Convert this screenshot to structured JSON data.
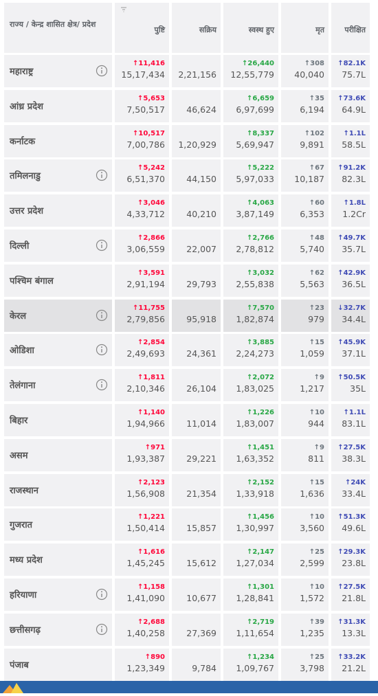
{
  "table": {
    "header": [
      "राज्य / केन्द्र शासित क्षेत्र/ प्रदेश",
      "पुष्टि",
      "सक्रिय",
      "स्वस्थ हुए",
      "मृत",
      "परीक्षित"
    ],
    "highlighted_row": 7,
    "rows": [
      {
        "state": "महाराष्ट्र",
        "info": true,
        "values": [
          "↑11,416",
          "15,17,434",
          "2,21,156",
          "↑26,440",
          "12,55,779",
          "↑308",
          "40,040",
          "↑82.1K",
          "75.7L"
        ]
      },
      {
        "state": "आंध्र प्रदेश",
        "info": false,
        "values": [
          "↑5,653",
          "7,50,517",
          "46,624",
          "↑6,659",
          "6,97,699",
          "↑35",
          "6,194",
          "↑73.6K",
          "64.9L"
        ]
      },
      {
        "state": "कर्नाटक",
        "info": false,
        "values": [
          "↑10,517",
          "7,00,786",
          "1,20,929",
          "↑8,337",
          "5,69,947",
          "↑102",
          "9,891",
          "↑1.1L",
          "58.5L"
        ]
      },
      {
        "state": "तमिलनाडु",
        "info": true,
        "values": [
          "↑5,242",
          "6,51,370",
          "44,150",
          "↑5,222",
          "5,97,033",
          "↑67",
          "10,187",
          "↑91.2K",
          "82.3L"
        ]
      },
      {
        "state": "उत्तर प्रदेश",
        "info": false,
        "values": [
          "↑3,046",
          "4,33,712",
          "40,210",
          "↑4,063",
          "3,87,149",
          "↑60",
          "6,353",
          "↑1.8L",
          "1.2Cr"
        ]
      },
      {
        "state": "दिल्ली",
        "info": true,
        "values": [
          "↑2,866",
          "3,06,559",
          "22,007",
          "↑2,766",
          "2,78,812",
          "↑48",
          "5,740",
          "↑49.7K",
          "35.7L"
        ]
      },
      {
        "state": "पश्चिम बंगाल",
        "info": false,
        "values": [
          "↑3,591",
          "2,91,194",
          "29,793",
          "↑3,032",
          "2,55,838",
          "↑62",
          "5,563",
          "↑42.9K",
          "36.5L"
        ]
      },
      {
        "state": "केरल",
        "info": true,
        "values": [
          "↑11,755",
          "2,79,856",
          "95,918",
          "↑7,570",
          "1,82,874",
          "↑23",
          "979",
          "↓32.7K",
          "34.4L"
        ]
      },
      {
        "state": "ओडिशा",
        "info": true,
        "values": [
          "↑2,854",
          "2,49,693",
          "24,361",
          "↑3,885",
          "2,24,273",
          "↑15",
          "1,059",
          "↑45.9K",
          "37.1L"
        ]
      },
      {
        "state": "तेलंगाना",
        "info": true,
        "values": [
          "↑1,811",
          "2,10,346",
          "26,104",
          "↑2,072",
          "1,83,025",
          "↑9",
          "1,217",
          "↑50.5K",
          "35L"
        ]
      },
      {
        "state": "बिहार",
        "info": false,
        "values": [
          "↑1,140",
          "1,94,966",
          "11,014",
          "↑1,226",
          "1,83,007",
          "↑10",
          "944",
          "↑1.1L",
          "83.1L"
        ]
      },
      {
        "state": "असम",
        "info": false,
        "values": [
          "↑971",
          "1,93,387",
          "29,221",
          "↑1,451",
          "1,63,352",
          "↑9",
          "811",
          "↑27.5K",
          "38.3L"
        ]
      },
      {
        "state": "राजस्थान",
        "info": false,
        "values": [
          "↑2,123",
          "1,56,908",
          "21,354",
          "↑2,152",
          "1,33,918",
          "↑15",
          "1,636",
          "↑24K",
          "33.4L"
        ]
      },
      {
        "state": "गुजरात",
        "info": false,
        "values": [
          "↑1,221",
          "1,50,414",
          "15,857",
          "↑1,456",
          "1,30,997",
          "↑10",
          "3,560",
          "↑51.3K",
          "49.6L"
        ]
      },
      {
        "state": "मध्य प्रदेश",
        "info": false,
        "values": [
          "↑1,616",
          "1,45,245",
          "15,612",
          "↑2,147",
          "1,27,034",
          "↑25",
          "2,599",
          "↑29.3K",
          "23.8L"
        ]
      },
      {
        "state": "हरियाणा",
        "info": true,
        "values": [
          "↑1,158",
          "1,41,090",
          "10,677",
          "↑1,301",
          "1,28,841",
          "↑10",
          "1,572",
          "↑27.5K",
          "21.8L"
        ]
      },
      {
        "state": "छत्तीसगढ़",
        "info": true,
        "values": [
          "↑2,688",
          "1,40,258",
          "27,369",
          "↑2,719",
          "1,11,654",
          "↑39",
          "1,235",
          "↑31.3K",
          "13.3L"
        ]
      },
      {
        "state": "पंजाब",
        "info": false,
        "values": [
          "↑890",
          "1,23,349",
          "9,784",
          "↑1,234",
          "1,09,767",
          "↑25",
          "3,798",
          "↑33.2K",
          "21.2L"
        ]
      }
    ]
  }
}
